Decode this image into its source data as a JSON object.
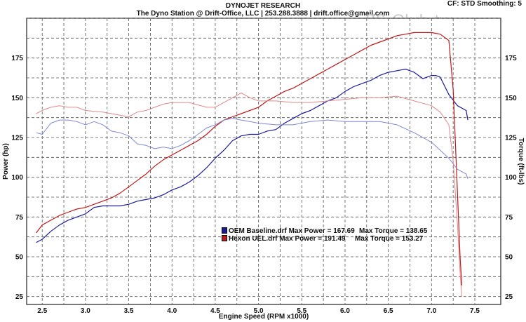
{
  "header": {
    "title": "DYNOJET RESEARCH",
    "subtitle": "The Dyno Station @ Drift-Office, LLC | 253.288.3888 | drift.office@gmail.com",
    "settings": "CF: STD  Smoothing: 5",
    "watermark": "86-Club.tw"
  },
  "legend": [
    {
      "file": "OEM Baseline.drf Max Power = 167.69",
      "torque": "Max Torque = 138.65",
      "color": "#1a1aa0"
    },
    {
      "file": "Hexon UEL.drf Max Power = 191.49",
      "torque": "Max Torque = 153.27",
      "color": "#c01818"
    }
  ],
  "chart_data": {
    "type": "line",
    "title": "DYNOJET RESEARCH",
    "xlabel": "Engine Speed (RPM x1000)",
    "ylabel": "Power (hp)",
    "y2label": "Torque (ft-lbs)",
    "xlim": [
      2.32,
      7.8
    ],
    "ylim": [
      20,
      200
    ],
    "y2lim": [
      20,
      200
    ],
    "x_ticks": [
      "2.5",
      "3.0",
      "3.5",
      "4.0",
      "4.5",
      "5.0",
      "5.5",
      "6.0",
      "6.5",
      "7.0",
      "7.5"
    ],
    "y_ticks": [
      "25",
      "50",
      "75",
      "100",
      "125",
      "150",
      "175"
    ],
    "grid": true,
    "series": [
      {
        "name": "OEM Baseline.drf",
        "measure": "Power",
        "color": "#1a1aa0",
        "x": [
          2.43,
          2.5,
          2.6,
          2.7,
          2.8,
          3.0,
          3.1,
          3.2,
          3.4,
          3.5,
          3.6,
          3.7,
          3.8,
          3.9,
          4.0,
          4.1,
          4.2,
          4.3,
          4.4,
          4.5,
          4.6,
          4.7,
          4.8,
          4.9,
          5.0,
          5.1,
          5.2,
          5.3,
          5.4,
          5.5,
          5.6,
          5.7,
          5.8,
          5.9,
          6.0,
          6.1,
          6.2,
          6.3,
          6.4,
          6.5,
          6.6,
          6.7,
          6.75,
          6.8,
          6.9,
          7.0,
          7.05,
          7.1,
          7.2,
          7.3,
          7.4,
          7.42
        ],
        "y": [
          59,
          61,
          66,
          70,
          73,
          77,
          81,
          82,
          82,
          83,
          85,
          86,
          87,
          89,
          92,
          94,
          97,
          101,
          106,
          112,
          117,
          123,
          126,
          127,
          127,
          129,
          130,
          134,
          137,
          140,
          142,
          145,
          148,
          150,
          154,
          157,
          159,
          161,
          164,
          166,
          167,
          168,
          167,
          166,
          162,
          164,
          164,
          163,
          152,
          145,
          142,
          136
        ]
      },
      {
        "name": "Hexon UEL.drf",
        "measure": "Power",
        "color": "#c01818",
        "x": [
          2.43,
          2.5,
          2.6,
          2.7,
          2.8,
          2.9,
          3.0,
          3.1,
          3.2,
          3.3,
          3.4,
          3.5,
          3.6,
          3.7,
          3.8,
          3.9,
          4.0,
          4.1,
          4.2,
          4.3,
          4.4,
          4.5,
          4.6,
          4.7,
          4.8,
          4.9,
          5.0,
          5.1,
          5.2,
          5.3,
          5.4,
          5.5,
          5.6,
          5.7,
          5.8,
          5.9,
          6.0,
          6.1,
          6.2,
          6.3,
          6.4,
          6.5,
          6.6,
          6.7,
          6.8,
          6.9,
          7.0,
          7.1,
          7.2,
          7.25,
          7.3,
          7.33,
          7.35
        ],
        "y": [
          65,
          70,
          73,
          76,
          78,
          80,
          81,
          83,
          85,
          87,
          90,
          94,
          98,
          102,
          107,
          111,
          114,
          117,
          120,
          123,
          127,
          132,
          136,
          138,
          140,
          142,
          144,
          148,
          151,
          154,
          156,
          159,
          162,
          165,
          168,
          171,
          174,
          177,
          180,
          183,
          185,
          187,
          189,
          190,
          191,
          191,
          191,
          190,
          186,
          155,
          90,
          50,
          32
        ]
      },
      {
        "name": "OEM Baseline.drf",
        "measure": "Torque",
        "color": "#7f88d6",
        "x": [
          2.43,
          2.5,
          2.6,
          2.7,
          2.8,
          2.9,
          3.0,
          3.1,
          3.2,
          3.3,
          3.4,
          3.5,
          3.6,
          3.7,
          3.8,
          3.9,
          4.0,
          4.1,
          4.2,
          4.3,
          4.4,
          4.5,
          4.6,
          4.7,
          4.8,
          4.9,
          5.0,
          5.2,
          5.4,
          5.6,
          5.8,
          6.0,
          6.2,
          6.4,
          6.6,
          6.8,
          7.0,
          7.2,
          7.3,
          7.4,
          7.42
        ],
        "y": [
          128,
          127,
          134,
          136,
          136,
          135,
          133,
          135,
          133,
          129,
          128,
          126,
          121,
          120,
          118,
          119,
          118,
          120,
          123,
          127,
          131,
          133,
          136,
          137,
          136,
          135,
          134,
          133,
          133,
          135,
          136,
          135,
          135,
          135,
          133,
          128,
          122,
          112,
          105,
          102,
          99
        ]
      },
      {
        "name": "Hexon UEL.drf",
        "measure": "Torque",
        "color": "#e08a8a",
        "x": [
          2.43,
          2.5,
          2.6,
          2.7,
          2.8,
          2.9,
          3.0,
          3.2,
          3.4,
          3.5,
          3.6,
          3.7,
          3.8,
          3.9,
          4.0,
          4.2,
          4.4,
          4.5,
          4.6,
          4.7,
          4.8,
          4.9,
          5.0,
          5.2,
          5.4,
          5.6,
          5.8,
          6.0,
          6.2,
          6.4,
          6.6,
          6.8,
          7.0,
          7.1,
          7.2,
          7.25,
          7.3,
          7.33,
          7.35
        ],
        "y": [
          140,
          142,
          144,
          145,
          144,
          144,
          142,
          141,
          139,
          138,
          141,
          142,
          144,
          146,
          147,
          147,
          144,
          144,
          147,
          150,
          153,
          150,
          148,
          148,
          147,
          147,
          148,
          149,
          150,
          150,
          151,
          148,
          145,
          141,
          133,
          110,
          70,
          40,
          25
        ]
      }
    ]
  }
}
